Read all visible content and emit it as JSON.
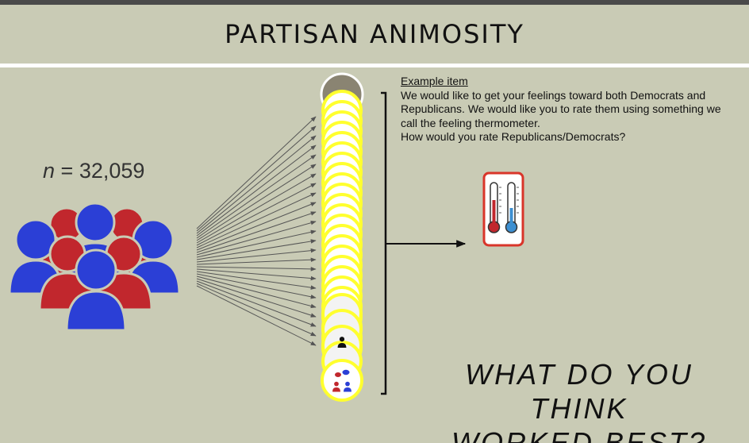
{
  "title": "PARTISAN ANIMOSITY",
  "sample": {
    "prefix": "n",
    "value": "= 32,059"
  },
  "example": {
    "heading": "Example item",
    "line1": "We would like to get your feelings toward both Democrats and",
    "line2": "Republicans. We would like you to rate them using something we",
    "line3": "call the feeling thermometer.",
    "line4": "How would you rate Republicans/Democrats?"
  },
  "question": {
    "line1": "WHAT DO YOU THINK",
    "line2": "WORKED BEST?"
  },
  "colors": {
    "background": "#c9cbb5",
    "red": "#c1272d",
    "blue": "#2b3fd6",
    "yellow": "#ffff2e",
    "thermo_border": "#d9352a",
    "arrow": "#555555"
  },
  "icons": [
    "people-group-icon",
    "thermometer-icon",
    "intervention-stack-icon"
  ]
}
